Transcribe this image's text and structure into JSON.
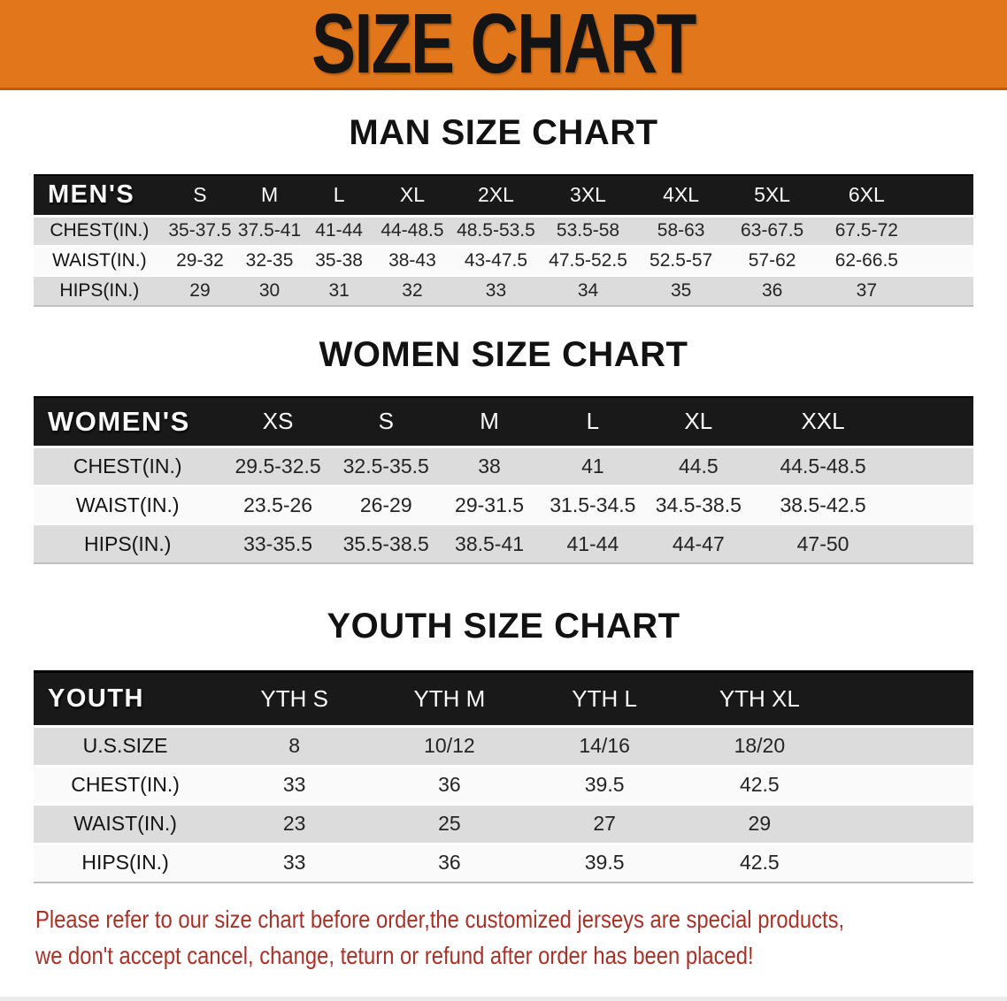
{
  "banner": {
    "title": "SIZE CHART"
  },
  "sections": [
    {
      "heading": "MAN SIZE CHART",
      "table": {
        "name": "mens",
        "label": "MEN'S",
        "columns": [
          "S",
          "M",
          "L",
          "XL",
          "2XL",
          "3XL",
          "4XL",
          "5XL",
          "6XL"
        ],
        "rows": [
          {
            "label": "CHEST(IN.)",
            "values": [
              "35-37.5",
              "37.5-41",
              "41-44",
              "44-48.5",
              "48.5-53.5",
              "53.5-58",
              "58-63",
              "63-67.5",
              "67.5-72"
            ]
          },
          {
            "label": "WAIST(IN.)",
            "values": [
              "29-32",
              "32-35",
              "35-38",
              "38-43",
              "43-47.5",
              "47.5-52.5",
              "52.5-57",
              "57-62",
              "62-66.5"
            ]
          },
          {
            "label": "HIPS(IN.)",
            "values": [
              "29",
              "30",
              "31",
              "32",
              "33",
              "34",
              "35",
              "36",
              "37"
            ]
          }
        ]
      }
    },
    {
      "heading": "WOMEN SIZE CHART",
      "table": {
        "name": "womens",
        "label": "WOMEN'S",
        "columns": [
          "XS",
          "S",
          "M",
          "L",
          "XL",
          "XXL"
        ],
        "rows": [
          {
            "label": "CHEST(IN.)",
            "values": [
              "29.5-32.5",
              "32.5-35.5",
              "38",
              "41",
              "44.5",
              "44.5-48.5"
            ]
          },
          {
            "label": "WAIST(IN.)",
            "values": [
              "23.5-26",
              "26-29",
              "29-31.5",
              "31.5-34.5",
              "34.5-38.5",
              "38.5-42.5"
            ]
          },
          {
            "label": "HIPS(IN.)",
            "values": [
              "33-35.5",
              "35.5-38.5",
              "38.5-41",
              "41-44",
              "44-47",
              "47-50"
            ]
          }
        ]
      }
    },
    {
      "heading": "YOUTH SIZE CHART",
      "table": {
        "name": "youth",
        "label": "YOUTH",
        "columns": [
          "YTH S",
          "YTH M",
          "YTH L",
          "YTH XL"
        ],
        "rows": [
          {
            "label": "U.S.SIZE",
            "values": [
              "8",
              "10/12",
              "14/16",
              "18/20"
            ]
          },
          {
            "label": "CHEST(IN.)",
            "values": [
              "33",
              "36",
              "39.5",
              "42.5"
            ]
          },
          {
            "label": "WAIST(IN.)",
            "values": [
              "23",
              "25",
              "27",
              "29"
            ]
          },
          {
            "label": "HIPS(IN.)",
            "values": [
              "33",
              "36",
              "39.5",
              "42.5"
            ]
          }
        ]
      }
    }
  ],
  "disclaimer": {
    "lines": [
      "Please refer to our size chart before order,the customized jerseys are special products,",
      "we don't accept cancel, change, teturn or refund after order has been placed!"
    ]
  },
  "colors": {
    "banner_bg": "#E2761B",
    "header_bar_bg": "#191919",
    "stripe_gray": "#DCDCDC",
    "stripe_light": "#FAFAFA",
    "disclaimer_red": "#A93128"
  }
}
